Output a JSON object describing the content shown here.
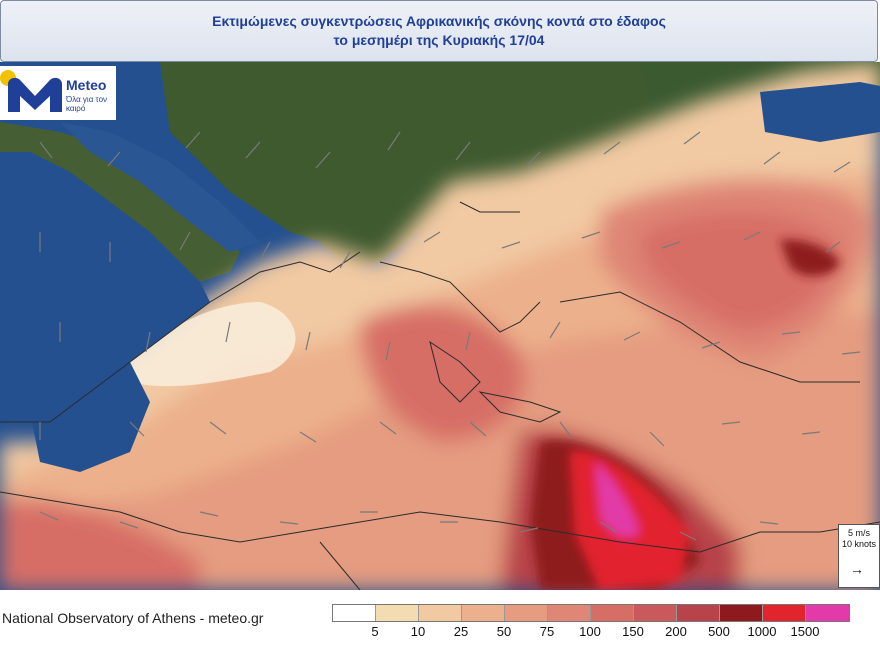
{
  "header": {
    "title_line1": "Εκτιμώμενες συγκεντρώσεις Αφρικανικής σκόνης κοντά στο έδαφος",
    "title_line2": "το μεσημέρι της Κυριακής 17/04"
  },
  "logo": {
    "name": "Meteo",
    "tagline": "Όλα για τον καιρό"
  },
  "wind_key": {
    "line1": "5 m/s",
    "line2": "10 knots",
    "arrow": "→"
  },
  "footer": {
    "credit": "National Observatory of Athens - meteo.gr"
  },
  "legend": {
    "colors": [
      "#ffffff",
      "#f3dcb2",
      "#f1c9a2",
      "#ecb08c",
      "#e59c80",
      "#df8676",
      "#d76e66",
      "#c9595a",
      "#b8434a",
      "#8e1a1e",
      "#e2242d",
      "#e23aa8"
    ],
    "labels": [
      "5",
      "10",
      "25",
      "50",
      "75",
      "100",
      "150",
      "200",
      "500",
      "1000",
      "1500"
    ]
  },
  "colors": {
    "sea": "#24508f",
    "land": "#3f5a2f",
    "title_text": "#1f3f98"
  }
}
